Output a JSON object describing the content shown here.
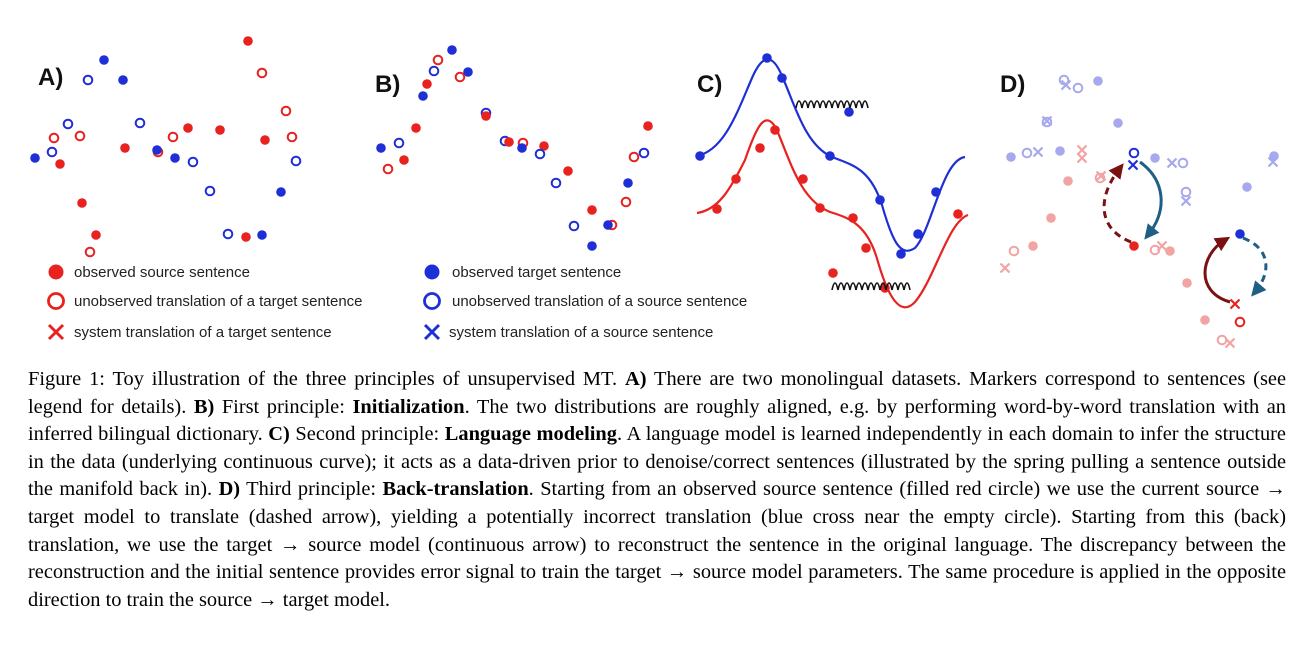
{
  "panels": {
    "a": "A)",
    "b": "B)",
    "c": "C)",
    "d": "D)"
  },
  "legend": {
    "observed_source": "observed source sentence",
    "unobserved_target_translation": "unobserved translation of a target sentence",
    "system_target_translation": "system translation of a target sentence",
    "observed_target": "observed target sentence",
    "unobserved_source_translation": "unobserved  translation of a source sentence",
    "system_source_translation": "system translation of a source sentence"
  },
  "colors": {
    "source_red": "#e8221f",
    "target_blue": "#1f2fd6",
    "arrow_dark_red": "#7a1212",
    "arrow_teal": "#1f5f86",
    "light_red": "#f2a3a3",
    "light_blue": "#a7a9ee"
  },
  "caption": {
    "figure_label": "Figure 1:",
    "intro": "Toy illustration of the three principles of unsupervised MT.",
    "a_label": "A)",
    "a_text": "There are two monolingual datasets. Markers correspond to sentences (see legend for details).",
    "b_label": "B)",
    "b_pre": "First principle:",
    "b_term": "Initialization",
    "b_text": ". The two distributions are roughly aligned, e.g. by performing word-by-word translation with an inferred bilingual dictionary.",
    "c_label": "C)",
    "c_pre": "Second principle:",
    "c_term": "Language modeling",
    "c_text": ". A language model is learned independently in each domain to infer the structure in the data (underlying continuous curve); it acts as a data-driven prior to denoise/correct sentences (illustrated by the spring pulling a sentence outside the manifold back in).",
    "d_label": "D)",
    "d_pre": "Third principle:",
    "d_term": "Back-translation",
    "d_text": ". Starting from an observed source sentence (filled red circle) we use the current source → target model to translate (dashed arrow), yielding a potentially incorrect translation (blue cross near the empty circle). Starting from this (back) translation, we use the target → source model (continuous arrow) to reconstruct the sentence in the original language. The discrepancy between the reconstruction and the initial sentence provides error signal to train the target → source model parameters. The same procedure is applied in the opposite direction to train the source → target model."
  }
}
